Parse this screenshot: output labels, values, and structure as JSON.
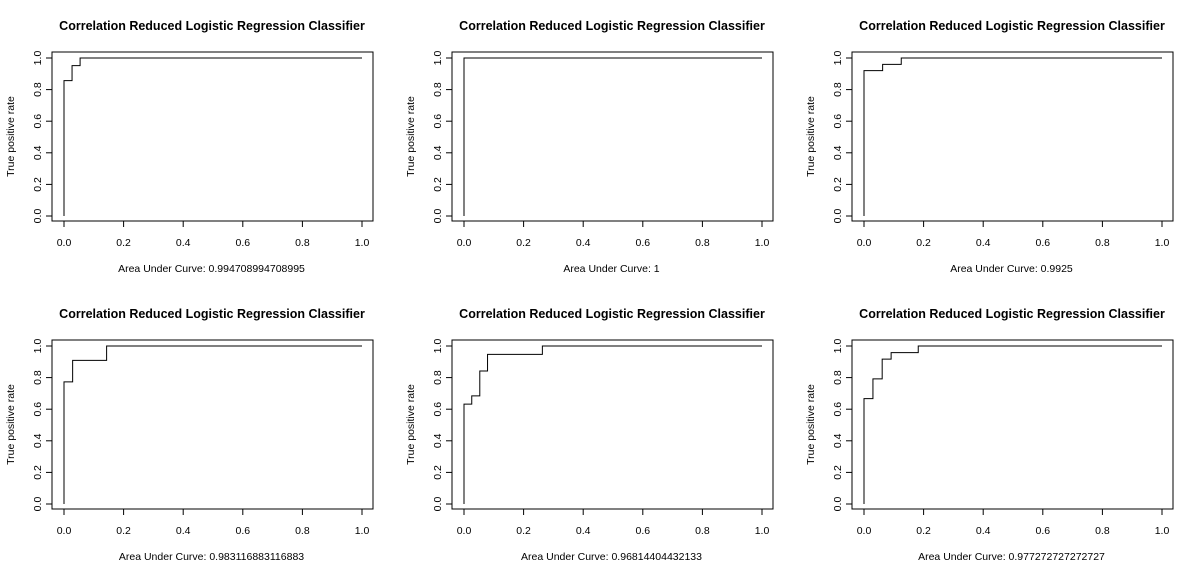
{
  "chart_data": [
    {
      "type": "line",
      "title": "Correlation Reduced Logistic Regression Classifier",
      "xlabel": "Area Under Curve:  0.994708994708995",
      "ylabel": "True positive rate",
      "xlim": [
        0,
        1
      ],
      "ylim": [
        0,
        1
      ],
      "xticks": [
        "0.0",
        "0.2",
        "0.4",
        "0.6",
        "0.8",
        "1.0"
      ],
      "yticks": [
        "0.0",
        "0.2",
        "0.4",
        "0.6",
        "0.8",
        "1.0"
      ],
      "grid": false,
      "series": [
        {
          "x": [
            0,
            0,
            0.027,
            0.027,
            0.054,
            0.054,
            1.0
          ],
          "y": [
            0,
            0.857,
            0.857,
            0.952,
            0.952,
            1.0,
            1.0
          ]
        }
      ]
    },
    {
      "type": "line",
      "title": "Correlation Reduced Logistic Regression Classifier",
      "xlabel": "Area Under Curve:  1",
      "ylabel": "True positive rate",
      "xlim": [
        0,
        1
      ],
      "ylim": [
        0,
        1
      ],
      "xticks": [
        "0.0",
        "0.2",
        "0.4",
        "0.6",
        "0.8",
        "1.0"
      ],
      "yticks": [
        "0.0",
        "0.2",
        "0.4",
        "0.6",
        "0.8",
        "1.0"
      ],
      "grid": false,
      "series": [
        {
          "x": [
            0,
            0,
            1.0
          ],
          "y": [
            0,
            1.0,
            1.0
          ]
        }
      ]
    },
    {
      "type": "line",
      "title": "Correlation Reduced Logistic Regression Classifier",
      "xlabel": "Area Under Curve:  0.9925",
      "ylabel": "True positive rate",
      "xlim": [
        0,
        1
      ],
      "ylim": [
        0,
        1
      ],
      "xticks": [
        "0.0",
        "0.2",
        "0.4",
        "0.6",
        "0.8",
        "1.0"
      ],
      "yticks": [
        "0.0",
        "0.2",
        "0.4",
        "0.6",
        "0.8",
        "1.0"
      ],
      "grid": false,
      "series": [
        {
          "x": [
            0,
            0,
            0.0625,
            0.0625,
            0.125,
            0.125,
            1.0
          ],
          "y": [
            0,
            0.92,
            0.92,
            0.96,
            0.96,
            1.0,
            1.0
          ]
        }
      ]
    },
    {
      "type": "line",
      "title": "Correlation Reduced Logistic Regression Classifier",
      "xlabel": "Area Under Curve:  0.983116883116883",
      "ylabel": "True positive rate",
      "xlim": [
        0,
        1
      ],
      "ylim": [
        0,
        1
      ],
      "xticks": [
        "0.0",
        "0.2",
        "0.4",
        "0.6",
        "0.8",
        "1.0"
      ],
      "yticks": [
        "0.0",
        "0.2",
        "0.4",
        "0.6",
        "0.8",
        "1.0"
      ],
      "grid": false,
      "series": [
        {
          "x": [
            0,
            0,
            0.029,
            0.029,
            0.143,
            0.143,
            1.0
          ],
          "y": [
            0,
            0.773,
            0.773,
            0.909,
            0.909,
            1.0,
            1.0
          ]
        }
      ]
    },
    {
      "type": "line",
      "title": "Correlation Reduced Logistic Regression Classifier",
      "xlabel": "Area Under Curve:  0.96814404432133",
      "ylabel": "True positive rate",
      "xlim": [
        0,
        1
      ],
      "ylim": [
        0,
        1
      ],
      "xticks": [
        "0.0",
        "0.2",
        "0.4",
        "0.6",
        "0.8",
        "1.0"
      ],
      "yticks": [
        "0.0",
        "0.2",
        "0.4",
        "0.6",
        "0.8",
        "1.0"
      ],
      "grid": false,
      "series": [
        {
          "x": [
            0,
            0,
            0.026,
            0.026,
            0.053,
            0.053,
            0.079,
            0.079,
            0.263,
            0.263,
            1.0
          ],
          "y": [
            0,
            0.632,
            0.632,
            0.684,
            0.684,
            0.842,
            0.842,
            0.947,
            0.947,
            1.0,
            1.0
          ]
        }
      ]
    },
    {
      "type": "line",
      "title": "Correlation Reduced Logistic Regression Classifier",
      "xlabel": "Area Under Curve:  0.977272727272727",
      "ylabel": "True positive rate",
      "xlim": [
        0,
        1
      ],
      "ylim": [
        0,
        1
      ],
      "xticks": [
        "0.0",
        "0.2",
        "0.4",
        "0.6",
        "0.8",
        "1.0"
      ],
      "yticks": [
        "0.0",
        "0.2",
        "0.4",
        "0.6",
        "0.8",
        "1.0"
      ],
      "grid": false,
      "series": [
        {
          "x": [
            0,
            0,
            0.03,
            0.03,
            0.061,
            0.061,
            0.091,
            0.091,
            0.182,
            0.182,
            1.0
          ],
          "y": [
            0,
            0.667,
            0.667,
            0.792,
            0.792,
            0.917,
            0.917,
            0.958,
            0.958,
            1.0,
            1.0
          ]
        }
      ]
    }
  ]
}
